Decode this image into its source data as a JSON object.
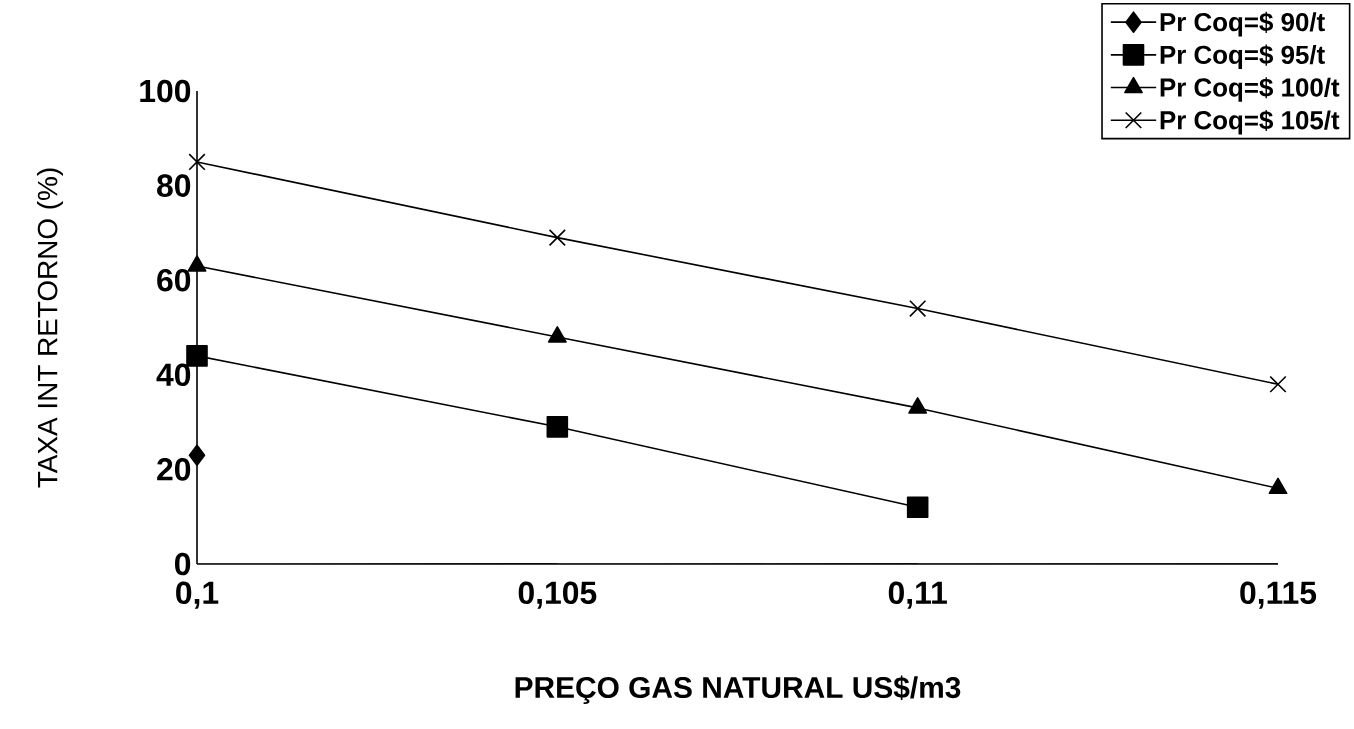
{
  "chart_data": {
    "type": "line",
    "xlabel": "PREÇO GAS NATURAL US$/m3",
    "ylabel": "TAXA INT RETORNO (%)",
    "x": [
      0.1,
      0.105,
      0.11,
      0.115
    ],
    "xlim": [
      0.1,
      0.115
    ],
    "xticks": [
      {
        "value": 0.1,
        "label": "0,1"
      },
      {
        "value": 0.105,
        "label": "0,105"
      },
      {
        "value": 0.11,
        "label": "0,11"
      },
      {
        "value": 0.115,
        "label": "0,115"
      }
    ],
    "ylim": [
      0,
      100
    ],
    "yticks": [
      0,
      20,
      40,
      60,
      80,
      100
    ],
    "grid": false,
    "legend": "top right",
    "line_style": "solid",
    "series": [
      {
        "name": "Pr Coq=$ 90/t",
        "color": "#000000",
        "marker": "diamond",
        "values": [
          23,
          null,
          null,
          null
        ]
      },
      {
        "name": "Pr Coq=$ 95/t",
        "color": "#000000",
        "marker": "square",
        "values": [
          44,
          29,
          12,
          null
        ]
      },
      {
        "name": "Pr Coq=$ 100/t",
        "color": "#000000",
        "marker": "triangle",
        "values": [
          63,
          48,
          33,
          16
        ]
      },
      {
        "name": "Pr Coq=$ 105/t",
        "color": "#000000",
        "marker": "cross",
        "values": [
          85,
          69,
          54,
          38
        ]
      }
    ]
  }
}
